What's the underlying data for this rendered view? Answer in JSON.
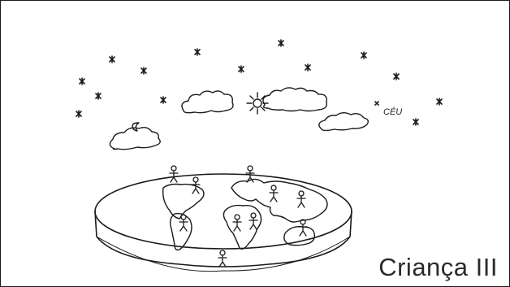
{
  "caption": "Criança III",
  "sky_label": "CÉU",
  "colors": {
    "ink": "#1a1a1a",
    "paper": "#ffffff"
  },
  "icons": [
    "star-icon",
    "sun-icon",
    "moon-icon",
    "cloud-icon",
    "stick-figure-icon"
  ]
}
